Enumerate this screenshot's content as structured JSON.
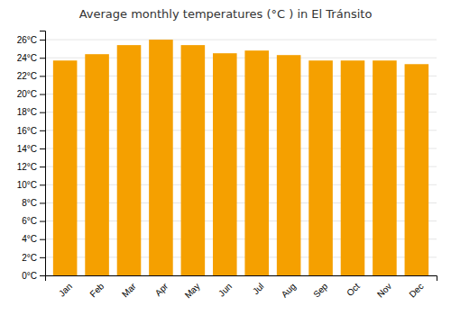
{
  "chart_data": {
    "type": "bar",
    "title": "Average monthly temperatures (°C ) in El Tránsito",
    "categories": [
      "Jan",
      "Feb",
      "Mar",
      "Apr",
      "May",
      "Jun",
      "Jul",
      "Aug",
      "Sep",
      "Oct",
      "Nov",
      "Dec"
    ],
    "values": [
      23.7,
      24.4,
      25.4,
      26.0,
      25.4,
      24.5,
      24.8,
      24.3,
      23.7,
      23.7,
      23.7,
      23.3
    ],
    "color": "#F5A000",
    "ylim": [
      0,
      27
    ],
    "yticks": [
      {
        "value": 0,
        "label": "0°C"
      },
      {
        "value": 2,
        "label": "2°C"
      },
      {
        "value": 4,
        "label": "4°C"
      },
      {
        "value": 6,
        "label": "6°C"
      },
      {
        "value": 8,
        "label": "8°C"
      },
      {
        "value": 10,
        "label": "10°C"
      },
      {
        "value": 12,
        "label": "12°C"
      },
      {
        "value": 14,
        "label": "14°C"
      },
      {
        "value": 16,
        "label": "16°C"
      },
      {
        "value": 18,
        "label": "18°C"
      },
      {
        "value": 20,
        "label": "20°C"
      },
      {
        "value": 22,
        "label": "22°C"
      },
      {
        "value": 24,
        "label": "24°C"
      },
      {
        "value": 26,
        "label": "26°C"
      }
    ],
    "grid": true
  }
}
